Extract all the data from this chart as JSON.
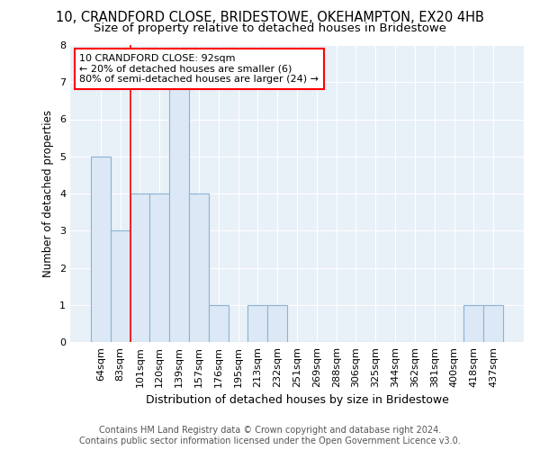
{
  "title": "10, CRANDFORD CLOSE, BRIDESTOWE, OKEHAMPTON, EX20 4HB",
  "subtitle": "Size of property relative to detached houses in Bridestowe",
  "xlabel": "Distribution of detached houses by size in Bridestowe",
  "ylabel": "Number of detached properties",
  "categories": [
    "64sqm",
    "83sqm",
    "101sqm",
    "120sqm",
    "139sqm",
    "157sqm",
    "176sqm",
    "195sqm",
    "213sqm",
    "232sqm",
    "251sqm",
    "269sqm",
    "288sqm",
    "306sqm",
    "325sqm",
    "344sqm",
    "362sqm",
    "381sqm",
    "400sqm",
    "418sqm",
    "437sqm"
  ],
  "values": [
    5,
    3,
    4,
    4,
    7,
    4,
    1,
    0,
    1,
    1,
    0,
    0,
    0,
    0,
    0,
    0,
    0,
    0,
    0,
    1,
    1
  ],
  "bar_color": "#dce8f5",
  "bar_edge_color": "#8ab4d4",
  "annotation_text": "10 CRANDFORD CLOSE: 92sqm\n← 20% of detached houses are smaller (6)\n80% of semi-detached houses are larger (24) →",
  "annotation_box_color": "white",
  "annotation_box_edge_color": "red",
  "vline_color": "red",
  "vline_x": 1.5,
  "ylim": [
    0,
    8
  ],
  "yticks": [
    0,
    1,
    2,
    3,
    4,
    5,
    6,
    7,
    8
  ],
  "footer_text": "Contains HM Land Registry data © Crown copyright and database right 2024.\nContains public sector information licensed under the Open Government Licence v3.0.",
  "title_fontsize": 10.5,
  "subtitle_fontsize": 9.5,
  "xlabel_fontsize": 9,
  "ylabel_fontsize": 8.5,
  "tick_fontsize": 8,
  "footer_fontsize": 7,
  "background_color": "#ffffff",
  "plot_bg_color": "#e8f0f8",
  "grid_color": "#ffffff"
}
